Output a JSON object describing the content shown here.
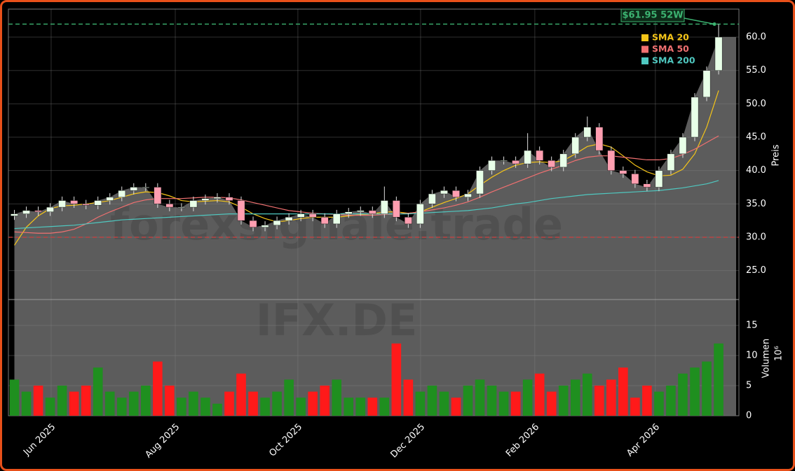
{
  "chart_data": {
    "type": "candlestick",
    "categories": [
      null,
      null,
      null,
      null,
      null,
      null,
      null,
      null,
      null,
      null,
      null,
      null,
      null,
      null,
      null,
      null,
      null,
      null,
      null,
      null,
      null,
      null,
      null,
      null,
      null,
      null,
      null,
      null,
      null,
      null,
      null,
      null,
      null,
      null,
      null,
      null,
      null,
      null,
      null,
      null,
      null,
      null,
      null,
      null,
      null,
      null,
      null,
      null,
      null,
      null,
      null,
      null,
      null,
      null,
      null,
      null,
      null,
      null,
      null,
      null
    ],
    "open": [
      33.2,
      33.5,
      34,
      33.8,
      34.5,
      35.5,
      35,
      34.8,
      35.5,
      36,
      37,
      37.5,
      37.5,
      35,
      34.5,
      34.5,
      35.5,
      35.8,
      36,
      35.5,
      32.5,
      31.5,
      31.8,
      32.5,
      33,
      33.5,
      33,
      32,
      33.5,
      33.8,
      34,
      33.5,
      35.5,
      33,
      32,
      35,
      36.5,
      37,
      36,
      36.5,
      40,
      41.5,
      41.5,
      41,
      43,
      41.5,
      40.5,
      42.5,
      45,
      46.5,
      43,
      40,
      39.5,
      38,
      37.5,
      40,
      42.5,
      45,
      51,
      55
    ],
    "high": [
      34.1,
      34.6,
      34.6,
      35.1,
      36.1,
      36.1,
      35.6,
      36.1,
      36.6,
      37.6,
      38.1,
      38.1,
      38.1,
      35.6,
      35.1,
      36.1,
      36.4,
      36.6,
      36.6,
      36.1,
      33.1,
      32.4,
      33.1,
      33.6,
      34.1,
      34.1,
      33.6,
      34.1,
      34.4,
      34.6,
      34.6,
      37.6,
      36.1,
      33.6,
      35.6,
      37.1,
      37.6,
      37.6,
      37.1,
      40.6,
      42.1,
      42.1,
      42.1,
      45.6,
      43.6,
      42.1,
      43.1,
      45.6,
      48.1,
      47.1,
      43.6,
      40.6,
      40.1,
      38.6,
      40.6,
      43.1,
      45.6,
      51.6,
      55.6,
      61.95
    ],
    "low": [
      32.6,
      32.9,
      33.2,
      33.2,
      33.9,
      34.4,
      34.2,
      34.2,
      34.9,
      35.4,
      36.4,
      36.9,
      34.4,
      33.9,
      33.9,
      33.9,
      34.9,
      35.2,
      34.9,
      31.9,
      30.9,
      30.9,
      31.2,
      31.9,
      32.4,
      32.4,
      31.4,
      31.4,
      32.9,
      33.2,
      32.9,
      32.9,
      32.4,
      31.4,
      31.4,
      34.4,
      35.9,
      35.4,
      35.4,
      35.9,
      39.4,
      40.9,
      40.4,
      40.4,
      40.9,
      39.9,
      39.9,
      41.9,
      44.4,
      42.4,
      39.4,
      38.9,
      37.4,
      36.9,
      36.9,
      39.4,
      41.9,
      44.4,
      50.4,
      54.4
    ],
    "close": [
      33.5,
      34,
      33.8,
      34.5,
      35.5,
      35,
      34.8,
      35.5,
      36,
      37,
      37.5,
      37.5,
      35,
      34.5,
      34.5,
      35.5,
      35.8,
      36,
      35.5,
      32.5,
      31.5,
      31.8,
      32.5,
      33,
      33.5,
      33,
      32,
      33.5,
      33.8,
      34,
      33.5,
      35.5,
      33,
      32,
      35,
      36.5,
      37,
      36,
      36.5,
      40,
      41.5,
      41.5,
      41,
      43,
      41.5,
      40.5,
      42.5,
      45,
      46.5,
      43,
      40,
      39.5,
      38,
      37.5,
      40,
      42.5,
      45,
      51,
      55,
      60
    ],
    "volume": [
      6,
      4,
      5,
      3,
      5,
      4,
      5,
      8,
      4,
      3,
      4,
      5,
      9,
      5,
      3,
      4,
      3,
      2,
      4,
      7,
      4,
      3,
      4,
      6,
      3,
      4,
      5,
      6,
      3,
      3,
      3,
      3,
      12,
      6,
      4,
      5,
      4,
      3,
      5,
      6,
      5,
      4,
      4,
      6,
      7,
      4,
      5,
      6,
      7,
      5,
      6,
      8,
      3,
      5,
      4,
      5,
      7,
      8,
      9,
      12
    ],
    "up_color": "#1f8f1f",
    "down_color": "#ff1a1a",
    "series": [
      {
        "name": "SMA 20",
        "color": "#f5c518",
        "values": [
          28.8,
          31.5,
          33.2,
          34.3,
          34.7,
          34.8,
          35,
          35.2,
          35.5,
          36,
          36.5,
          36.8,
          36.7,
          36.2,
          35.5,
          35.3,
          35.4,
          35.5,
          35.3,
          34.5,
          33.5,
          32.8,
          32.3,
          32.5,
          32.8,
          33,
          33,
          33,
          33.2,
          33.4,
          33.5,
          33.8,
          33.8,
          33.6,
          33.8,
          34.5,
          35.2,
          35.8,
          36.5,
          37.8,
          39,
          40,
          40.8,
          41.2,
          41.3,
          41.2,
          41.5,
          42.5,
          43.6,
          44,
          43.5,
          42.2,
          40.8,
          39.8,
          39.2,
          39.3,
          40.2,
          42.5,
          46.5,
          52
        ]
      },
      {
        "name": "SMA 50",
        "color": "#f07070",
        "values": [
          30.8,
          30.7,
          30.6,
          30.6,
          30.8,
          31.2,
          32,
          33,
          33.8,
          34.5,
          35.2,
          35.6,
          35.8,
          35.8,
          35.8,
          35.9,
          36,
          36,
          35.9,
          35.6,
          35.2,
          34.8,
          34.4,
          34,
          33.8,
          33.6,
          33.5,
          33.4,
          33.3,
          33.3,
          33.3,
          33.4,
          33.5,
          33.6,
          33.8,
          34.1,
          34.4,
          34.8,
          35.3,
          36,
          36.8,
          37.5,
          38.2,
          38.9,
          39.6,
          40.2,
          40.8,
          41.5,
          42,
          42.2,
          42.2,
          42,
          41.8,
          41.6,
          41.6,
          41.8,
          42.4,
          43.2,
          44.2,
          45.2
        ]
      },
      {
        "name": "SMA 200",
        "color": "#4fc8c0",
        "values": [
          31.3,
          31.4,
          31.5,
          31.6,
          31.7,
          31.8,
          32,
          32.2,
          32.4,
          32.6,
          32.7,
          32.8,
          32.9,
          33,
          33.1,
          33.2,
          33.3,
          33.4,
          33.5,
          33.5,
          33.5,
          33.5,
          33.5,
          33.5,
          33.5,
          33.5,
          33.5,
          33.5,
          33.5,
          33.5,
          33.5,
          33.5,
          33.5,
          33.5,
          33.6,
          33.7,
          33.8,
          33.9,
          34,
          34.2,
          34.4,
          34.7,
          35,
          35.2,
          35.5,
          35.8,
          36,
          36.2,
          36.4,
          36.5,
          36.6,
          36.7,
          36.8,
          36.9,
          37,
          37.2,
          37.4,
          37.7,
          38,
          38.5
        ]
      }
    ],
    "xlim": [
      -0.5,
      60.7
    ],
    "xticks": [
      {
        "value": 3.08,
        "label": "Jun 2025"
      },
      {
        "value": 13.48,
        "label": "Aug 2025"
      },
      {
        "value": 23.75,
        "label": "Oct 2025"
      },
      {
        "value": 34.03,
        "label": "Dec 2025"
      },
      {
        "value": 43.6,
        "label": "Feb 2026"
      },
      {
        "value": 53.7,
        "label": "Apr 2026"
      }
    ],
    "ylim": [
      20.66,
      64.2
    ],
    "yticks": [
      {
        "value": 25,
        "label": "25.0"
      },
      {
        "value": 30,
        "label": "30.0"
      },
      {
        "value": 35,
        "label": "35.0"
      },
      {
        "value": 40,
        "label": "40.0"
      },
      {
        "value": 45,
        "label": "45.0"
      },
      {
        "value": 50,
        "label": "50.0"
      },
      {
        "value": 55,
        "label": "55.0"
      },
      {
        "value": 60,
        "label": "60.0"
      }
    ],
    "ylabel": "Preis",
    "volume_ylim": [
      0,
      19.3
    ],
    "volume_yticks": [
      0,
      5,
      10,
      15
    ],
    "volume_ylabel": "Volumen",
    "volume_scale": "10⁶",
    "hlines": [
      {
        "value": 61.95,
        "color": "#3cb371",
        "label": "$61.95 52W"
      },
      {
        "value": 30,
        "color": "#d04040"
      }
    ],
    "watermarks": [
      "forexsignale.trade",
      "IFX.DE"
    ],
    "grid": true
  }
}
